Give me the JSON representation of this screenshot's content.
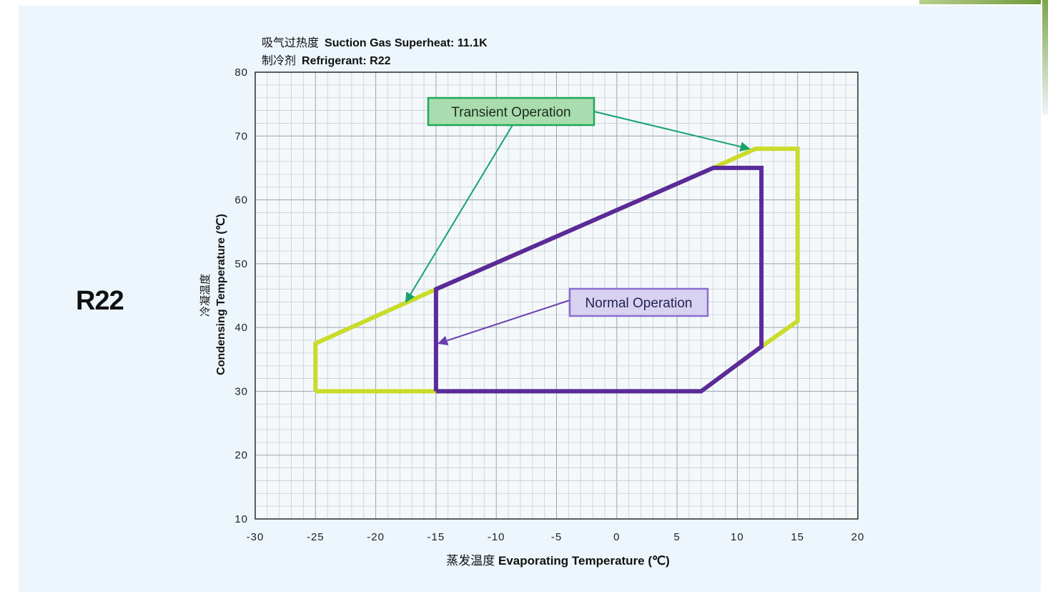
{
  "refrigerant_label": "R22",
  "header": {
    "line1_cn": "吸气过热度",
    "line1_en": "Suction Gas Superheat: 11.1K",
    "line2_cn": "制冷剂",
    "line2_en": "Refrigerant: R22"
  },
  "colors": {
    "background": "#edf6fc",
    "transient": "#c9dc2a",
    "normal": "#5b2a9a",
    "transient_label_bg": "#a9dcae",
    "transient_label_border": "#1fa85a",
    "normal_label_bg": "#d8d2f0",
    "normal_label_border": "#8a6fd0",
    "transient_arrow": "#17a36c",
    "normal_arrow": "#6b3fb0"
  },
  "chart_data": {
    "type": "line",
    "xlabel_cn": "蒸发温度",
    "xlabel_en": "Evaporating Temperature (℃)",
    "ylabel_cn": "冷凝温度",
    "ylabel_en": "Condensing Temperature (℃)",
    "xlim": [
      -30,
      20
    ],
    "ylim": [
      10,
      80
    ],
    "x_ticks": [
      -30,
      -25,
      -20,
      -15,
      -10,
      -5,
      0,
      5,
      10,
      15,
      20
    ],
    "y_ticks": [
      10,
      20,
      30,
      40,
      50,
      60,
      70,
      80
    ],
    "grid": true,
    "series": [
      {
        "name": "Transient Operation",
        "points": [
          [
            -25,
            30
          ],
          [
            -25,
            37.5
          ],
          [
            -15,
            46
          ],
          [
            8,
            65
          ],
          [
            11.5,
            68
          ],
          [
            15,
            68
          ],
          [
            15,
            41
          ],
          [
            12,
            37
          ],
          [
            7,
            30
          ],
          [
            -25,
            30
          ]
        ]
      },
      {
        "name": "Normal Operation",
        "points": [
          [
            -15,
            30
          ],
          [
            -15,
            46
          ],
          [
            8,
            65
          ],
          [
            12,
            65
          ],
          [
            12,
            37
          ],
          [
            7,
            30
          ],
          [
            -15,
            30
          ]
        ]
      }
    ],
    "annotations": [
      {
        "text": "Transient Operation",
        "series": "Transient Operation",
        "arrow_targets": [
          [
            -17.5,
            44
          ],
          [
            11,
            68
          ]
        ]
      },
      {
        "text": "Normal Operation",
        "series": "Normal Operation",
        "arrow_targets": [
          [
            -14.8,
            37.5
          ]
        ]
      }
    ]
  }
}
